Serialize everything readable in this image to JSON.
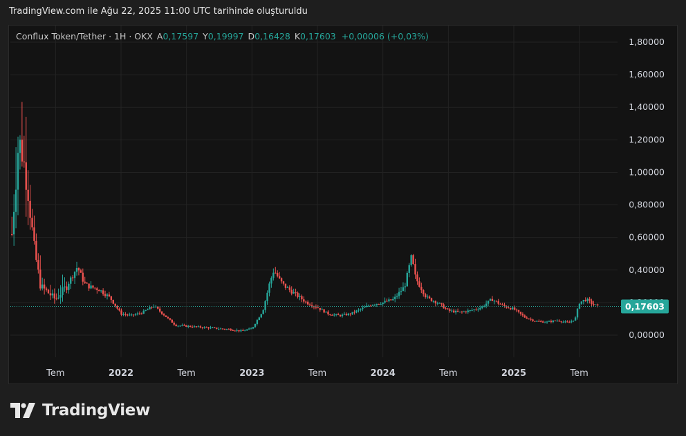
{
  "caption": "TradingView.com ile Ağu 22, 2025 11:00 UTC tarihinde oluşturuldu",
  "legend": {
    "symbol": "Conflux Token/Tether · 1H · OKX",
    "open_label": "A",
    "open": "0,17597",
    "high_label": "Y",
    "high": "0,19997",
    "low_label": "D",
    "low": "0,16428",
    "close_label": "K",
    "close": "0,17603",
    "change": "+0,00006 (+0,03%)"
  },
  "last_price_label": "0,17603",
  "brand": "TradingView",
  "colors": {
    "up": "#26a69a",
    "down": "#ef5350",
    "grid": "#232323",
    "price_tag": "#26a69a"
  },
  "chart_data": {
    "type": "candlestick",
    "grid": true,
    "y_axis_position": "right",
    "ylim": [
      -0.08,
      1.86
    ],
    "last_price": 0.17603,
    "y_ticks": [
      {
        "value": 1.8,
        "label": "1,80000"
      },
      {
        "value": 1.6,
        "label": "1,60000"
      },
      {
        "value": 1.4,
        "label": "1,40000"
      },
      {
        "value": 1.2,
        "label": "1,20000"
      },
      {
        "value": 1.0,
        "label": "1,00000"
      },
      {
        "value": 0.8,
        "label": "0,80000"
      },
      {
        "value": 0.6,
        "label": "0,60000"
      },
      {
        "value": 0.4,
        "label": "0,40000"
      },
      {
        "value": 0.2,
        "label": "0,20000"
      },
      {
        "value": 0.0,
        "label": "0,00000"
      }
    ],
    "x_ticks": [
      {
        "date": "2021-07",
        "label": "Tem"
      },
      {
        "date": "2022-01",
        "label": "2022"
      },
      {
        "date": "2022-07",
        "label": "Tem"
      },
      {
        "date": "2023-01",
        "label": "2023"
      },
      {
        "date": "2023-07",
        "label": "Tem"
      },
      {
        "date": "2024-01",
        "label": "2024"
      },
      {
        "date": "2024-07",
        "label": "Tem"
      },
      {
        "date": "2025-01",
        "label": "2025"
      },
      {
        "date": "2025-07",
        "label": "Tem"
      }
    ],
    "x_range": [
      "2021-03",
      "2025-11"
    ],
    "price_path": [
      {
        "date": "2021-03",
        "price": 0.62
      },
      {
        "date": "2021-03-20",
        "price": 1.2
      },
      {
        "date": "2021-04",
        "price": 1.1
      },
      {
        "date": "2021-04-15",
        "price": 0.9
      },
      {
        "date": "2021-05",
        "price": 0.55
      },
      {
        "date": "2021-05-20",
        "price": 0.3
      },
      {
        "date": "2021-06",
        "price": 0.28
      },
      {
        "date": "2021-07",
        "price": 0.22
      },
      {
        "date": "2021-08",
        "price": 0.3
      },
      {
        "date": "2021-09",
        "price": 0.42
      },
      {
        "date": "2021-09-20",
        "price": 0.32
      },
      {
        "date": "2021-10",
        "price": 0.3
      },
      {
        "date": "2021-11",
        "price": 0.28
      },
      {
        "date": "2021-12",
        "price": 0.23
      },
      {
        "date": "2022-01",
        "price": 0.13
      },
      {
        "date": "2022-02",
        "price": 0.12
      },
      {
        "date": "2022-03",
        "price": 0.14
      },
      {
        "date": "2022-04",
        "price": 0.18
      },
      {
        "date": "2022-05",
        "price": 0.12
      },
      {
        "date": "2022-06",
        "price": 0.06
      },
      {
        "date": "2022-07",
        "price": 0.055
      },
      {
        "date": "2022-08",
        "price": 0.05
      },
      {
        "date": "2022-09",
        "price": 0.045
      },
      {
        "date": "2022-10",
        "price": 0.04
      },
      {
        "date": "2022-11",
        "price": 0.035
      },
      {
        "date": "2022-12",
        "price": 0.025
      },
      {
        "date": "2023-01",
        "price": 0.04
      },
      {
        "date": "2023-02",
        "price": 0.15
      },
      {
        "date": "2023-02-20",
        "price": 0.32
      },
      {
        "date": "2023-03",
        "price": 0.4
      },
      {
        "date": "2023-03-20",
        "price": 0.33
      },
      {
        "date": "2023-04",
        "price": 0.3
      },
      {
        "date": "2023-05",
        "price": 0.25
      },
      {
        "date": "2023-06",
        "price": 0.2
      },
      {
        "date": "2023-07",
        "price": 0.17
      },
      {
        "date": "2023-08",
        "price": 0.13
      },
      {
        "date": "2023-09",
        "price": 0.12
      },
      {
        "date": "2023-10",
        "price": 0.13
      },
      {
        "date": "2023-11",
        "price": 0.16
      },
      {
        "date": "2023-12",
        "price": 0.19
      },
      {
        "date": "2024-01",
        "price": 0.2
      },
      {
        "date": "2024-02",
        "price": 0.22
      },
      {
        "date": "2024-03",
        "price": 0.3
      },
      {
        "date": "2024-03-20",
        "price": 0.48
      },
      {
        "date": "2024-04",
        "price": 0.35
      },
      {
        "date": "2024-05",
        "price": 0.23
      },
      {
        "date": "2024-06",
        "price": 0.2
      },
      {
        "date": "2024-07",
        "price": 0.15
      },
      {
        "date": "2024-08",
        "price": 0.14
      },
      {
        "date": "2024-09",
        "price": 0.15
      },
      {
        "date": "2024-10",
        "price": 0.17
      },
      {
        "date": "2024-11",
        "price": 0.22
      },
      {
        "date": "2024-12",
        "price": 0.18
      },
      {
        "date": "2025-01",
        "price": 0.16
      },
      {
        "date": "2025-02",
        "price": 0.11
      },
      {
        "date": "2025-03",
        "price": 0.085
      },
      {
        "date": "2025-04",
        "price": 0.08
      },
      {
        "date": "2025-05",
        "price": 0.09
      },
      {
        "date": "2025-06",
        "price": 0.075
      },
      {
        "date": "2025-06-20",
        "price": 0.1
      },
      {
        "date": "2025-07",
        "price": 0.2
      },
      {
        "date": "2025-07-20",
        "price": 0.22
      },
      {
        "date": "2025-08",
        "price": 0.2
      },
      {
        "date": "2025-08-22",
        "price": 0.176
      }
    ]
  }
}
